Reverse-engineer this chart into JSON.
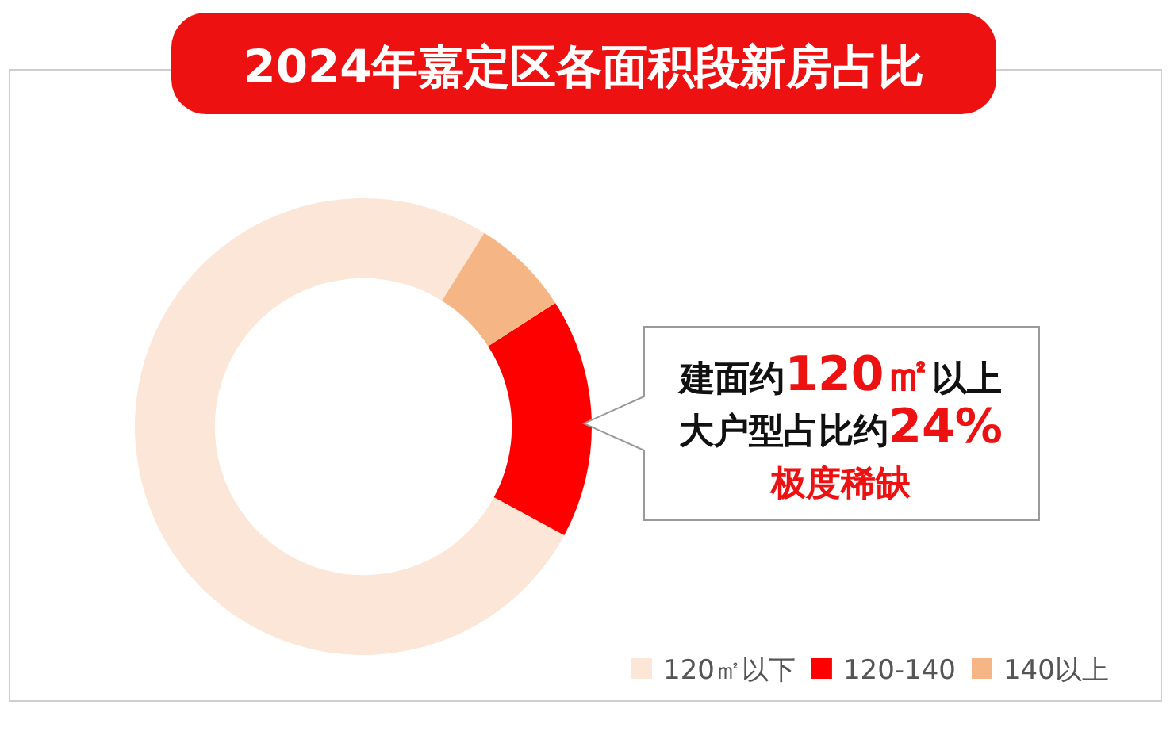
{
  "chart_data": {
    "type": "donut",
    "title": "2024年嘉定区各面积段新房占比",
    "categories": [
      "120㎡以下",
      "120-140",
      "140以上"
    ],
    "values": [
      76,
      17,
      7
    ],
    "colors": [
      "#fce6d7",
      "#ff0000",
      "#f5b584"
    ],
    "legend": "bottom right",
    "annotations": [
      "建面约**120㎡**以上",
      "大户型占比约**24%**",
      "极度稀缺"
    ]
  }
}
